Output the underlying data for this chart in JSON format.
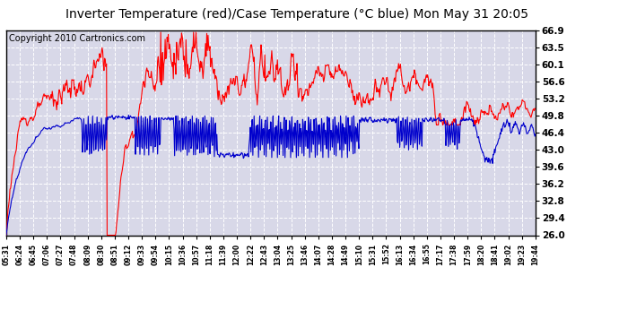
{
  "title": "Inverter Temperature (red)/Case Temperature (°C blue) Mon May 31 20:05",
  "copyright": "Copyright 2010 Cartronics.com",
  "y_ticks": [
    26.0,
    29.4,
    32.8,
    36.2,
    39.6,
    43.0,
    46.4,
    49.8,
    53.2,
    56.6,
    60.1,
    63.5,
    66.9
  ],
  "ylim": [
    26.0,
    66.9
  ],
  "x_labels": [
    "05:31",
    "06:24",
    "06:45",
    "07:06",
    "07:27",
    "07:48",
    "08:09",
    "08:30",
    "08:51",
    "09:12",
    "09:33",
    "09:54",
    "10:15",
    "10:36",
    "10:57",
    "11:18",
    "11:39",
    "12:00",
    "12:22",
    "12:43",
    "13:04",
    "13:25",
    "13:46",
    "14:07",
    "14:28",
    "14:49",
    "15:10",
    "15:31",
    "15:52",
    "16:13",
    "16:34",
    "16:55",
    "17:17",
    "17:38",
    "17:59",
    "18:20",
    "18:41",
    "19:02",
    "19:23",
    "19:44"
  ],
  "background_color": "#ffffff",
  "plot_bg_color": "#d8d8e8",
  "grid_color": "#ffffff",
  "red_color": "#ff0000",
  "blue_color": "#0000cc",
  "title_fontsize": 10,
  "copyright_fontsize": 7
}
